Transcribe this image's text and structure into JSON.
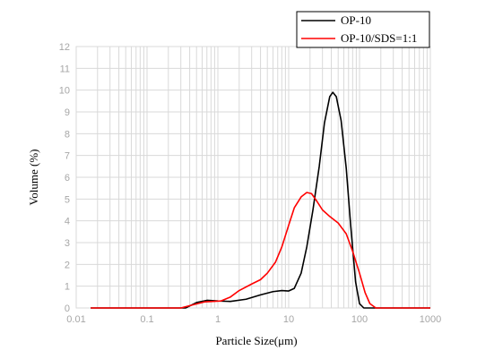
{
  "chart_data": {
    "type": "line",
    "xscale": "log",
    "xlim": [
      0.01,
      1000
    ],
    "ylim": [
      0,
      12
    ],
    "xlabel": "Particle Size(μm)",
    "ylabel": "Volume (%)",
    "title": "",
    "grid": true,
    "legend_position": "top-right",
    "x_ticks": [
      "0.01",
      "0.1",
      "1",
      "10",
      "100",
      "1000"
    ],
    "y_ticks": [
      "0",
      "1",
      "2",
      "3",
      "4",
      "5",
      "6",
      "7",
      "8",
      "9",
      "10",
      "11",
      "12"
    ],
    "series": [
      {
        "name": "OP-10",
        "color": "#000000",
        "points": [
          [
            0.016,
            0
          ],
          [
            0.35,
            0
          ],
          [
            0.5,
            0.25
          ],
          [
            0.7,
            0.35
          ],
          [
            1.0,
            0.32
          ],
          [
            1.5,
            0.3
          ],
          [
            2.5,
            0.4
          ],
          [
            4,
            0.6
          ],
          [
            6,
            0.75
          ],
          [
            8,
            0.8
          ],
          [
            10,
            0.78
          ],
          [
            12,
            0.9
          ],
          [
            15,
            1.6
          ],
          [
            18,
            2.8
          ],
          [
            22,
            4.5
          ],
          [
            27,
            6.5
          ],
          [
            32,
            8.5
          ],
          [
            38,
            9.7
          ],
          [
            42,
            9.9
          ],
          [
            47,
            9.7
          ],
          [
            55,
            8.6
          ],
          [
            65,
            6.4
          ],
          [
            75,
            3.8
          ],
          [
            88,
            1.2
          ],
          [
            100,
            0.2
          ],
          [
            115,
            0
          ],
          [
            1000,
            0
          ]
        ]
      },
      {
        "name": "OP-10/SDS=1:1",
        "color": "#ff0000",
        "points": [
          [
            0.016,
            0
          ],
          [
            0.3,
            0
          ],
          [
            0.45,
            0.15
          ],
          [
            0.65,
            0.28
          ],
          [
            0.85,
            0.3
          ],
          [
            1.1,
            0.32
          ],
          [
            1.5,
            0.5
          ],
          [
            2,
            0.8
          ],
          [
            3,
            1.1
          ],
          [
            4,
            1.3
          ],
          [
            5,
            1.6
          ],
          [
            6.5,
            2.1
          ],
          [
            8,
            2.8
          ],
          [
            10,
            3.8
          ],
          [
            12,
            4.6
          ],
          [
            15,
            5.1
          ],
          [
            18,
            5.3
          ],
          [
            21,
            5.25
          ],
          [
            25,
            4.9
          ],
          [
            30,
            4.5
          ],
          [
            38,
            4.2
          ],
          [
            50,
            3.9
          ],
          [
            65,
            3.4
          ],
          [
            80,
            2.6
          ],
          [
            100,
            1.6
          ],
          [
            120,
            0.7
          ],
          [
            140,
            0.2
          ],
          [
            170,
            0
          ],
          [
            1000,
            0
          ]
        ]
      }
    ]
  }
}
